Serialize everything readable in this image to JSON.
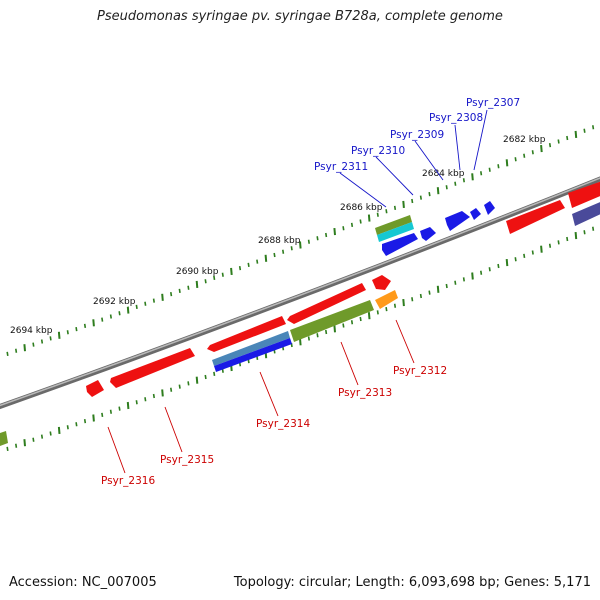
{
  "title": "Pseudomonas syringae pv. syringae B728a, complete genome",
  "accession_text": "Accession: NC_007005",
  "summary_text": "Topology: circular; Length: 6,093,698 bp; Genes: 5,171",
  "colors": {
    "backbone": "#8c8c8c",
    "tick": "#2e7d1e",
    "forward_label": "#1515c8",
    "reverse_label": "#cc0000",
    "red": "#ee1111",
    "blue": "#1a1ae6",
    "olive": "#6f9a2a",
    "cyan": "#16c8d2",
    "orange": "#ff9a1a",
    "steel": "#4a86b8",
    "navy": "#4a4a9a"
  },
  "tick_labels": [
    "2682 kbp",
    "2684 kbp",
    "2686 kbp",
    "2688 kbp",
    "2690 kbp",
    "2692 kbp",
    "2694 kbp"
  ],
  "forward_genes": [
    "Psyr_2307",
    "Psyr_2308",
    "Psyr_2309",
    "Psyr_2310",
    "Psyr_2311"
  ],
  "reverse_genes": [
    "Psyr_2312",
    "Psyr_2313",
    "Psyr_2314",
    "Psyr_2315",
    "Psyr_2316"
  ]
}
